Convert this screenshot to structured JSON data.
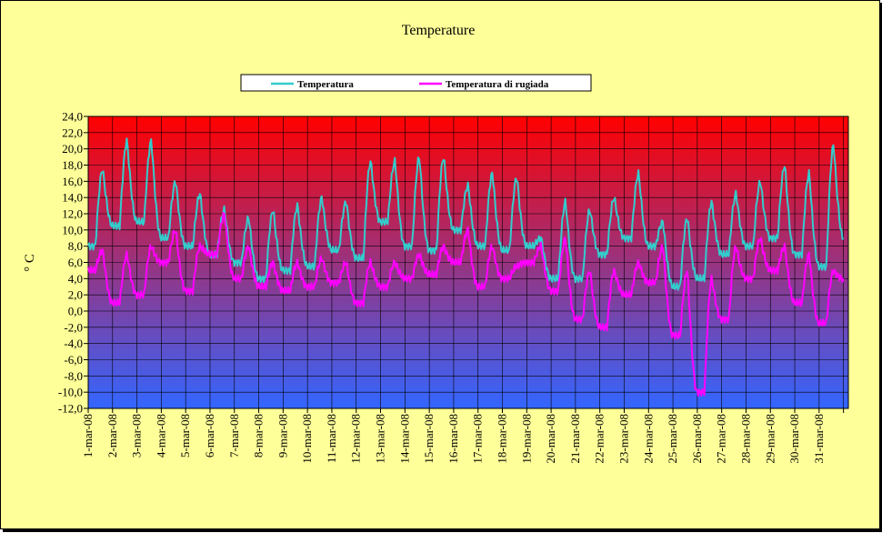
{
  "chart_data": {
    "type": "line",
    "title": "Temperature",
    "ylabel": "° C",
    "xlabel": "",
    "ylim": [
      -12,
      24
    ],
    "y_step": 2,
    "y_tick_labels": [
      "24,0",
      "22,0",
      "20,0",
      "18,0",
      "16,0",
      "14,0",
      "12,0",
      "10,0",
      "8,0",
      "6,0",
      "4,0",
      "2,0",
      "0,0",
      "-2,0",
      "-4,0",
      "-6,0",
      "-8,0",
      "-10,0",
      "-12,0"
    ],
    "x_tick_labels": [
      "1-mar-08",
      "2-mar-08",
      "3-mar-08",
      "4-mar-08",
      "5-mar-08",
      "6-mar-08",
      "7-mar-08",
      "8-mar-08",
      "9-mar-08",
      "10-mar-08",
      "11-mar-08",
      "12-mar-08",
      "13-mar-08",
      "14-mar-08",
      "15-mar-08",
      "16-mar-08",
      "17-mar-08",
      "18-mar-08",
      "19-mar-08",
      "20-mar-08",
      "21-mar-08",
      "22-mar-08",
      "23-mar-08",
      "24-mar-08",
      "25-mar-08",
      "26-mar-08",
      "27-mar-08",
      "28-mar-08",
      "29-mar-08",
      "30-mar-08",
      "31-mar-08"
    ],
    "grid": true,
    "legend_position": "top",
    "background_gradient": [
      "#ff0000",
      "#3366ff"
    ],
    "series": [
      {
        "name": "Temperatura",
        "color": "#33cccc",
        "daily": [
          [
            8,
            17.5
          ],
          [
            10.5,
            21
          ],
          [
            11,
            21
          ],
          [
            9,
            16
          ],
          [
            8,
            14.5
          ],
          [
            7,
            12.5
          ],
          [
            6,
            11.5
          ],
          [
            4,
            12.5
          ],
          [
            5,
            13
          ],
          [
            5.5,
            14
          ],
          [
            7.5,
            13.5
          ],
          [
            6.5,
            18.5
          ],
          [
            11,
            18.5
          ],
          [
            8,
            19
          ],
          [
            7.5,
            19
          ],
          [
            10,
            15.5
          ],
          [
            8,
            17
          ],
          [
            7.5,
            16.5
          ],
          [
            8,
            9
          ],
          [
            4,
            13.5
          ],
          [
            4,
            12.5
          ],
          [
            7,
            14
          ],
          [
            9,
            17
          ],
          [
            8,
            11
          ],
          [
            3,
            11.5
          ],
          [
            4,
            13.5
          ],
          [
            7,
            14.5
          ],
          [
            8,
            16
          ],
          [
            9,
            18
          ],
          [
            7,
            17
          ],
          [
            5.5,
            20.5
          ]
        ],
        "end": 9
      },
      {
        "name": "Temperatura di rugiada",
        "color": "#ff00ff",
        "daily": [
          [
            5,
            7.5
          ],
          [
            1,
            7
          ],
          [
            2,
            8
          ],
          [
            6,
            10
          ],
          [
            2.5,
            8
          ],
          [
            7,
            12
          ],
          [
            4,
            8
          ],
          [
            3,
            6
          ],
          [
            2.5,
            6
          ],
          [
            3,
            6.5
          ],
          [
            3.5,
            6
          ],
          [
            1,
            6
          ],
          [
            3,
            6
          ],
          [
            4,
            7
          ],
          [
            4.5,
            8
          ],
          [
            6,
            10
          ],
          [
            3,
            8
          ],
          [
            4,
            5.5
          ],
          [
            6,
            8
          ],
          [
            2.5,
            9
          ],
          [
            -1,
            5
          ],
          [
            -2,
            5
          ],
          [
            2,
            6
          ],
          [
            3.5,
            8
          ],
          [
            -3,
            5
          ],
          [
            -10,
            4
          ],
          [
            -1,
            8
          ],
          [
            4,
            9
          ],
          [
            5,
            8
          ],
          [
            1,
            7
          ],
          [
            -1.5,
            5
          ]
        ],
        "end": 4
      }
    ]
  }
}
